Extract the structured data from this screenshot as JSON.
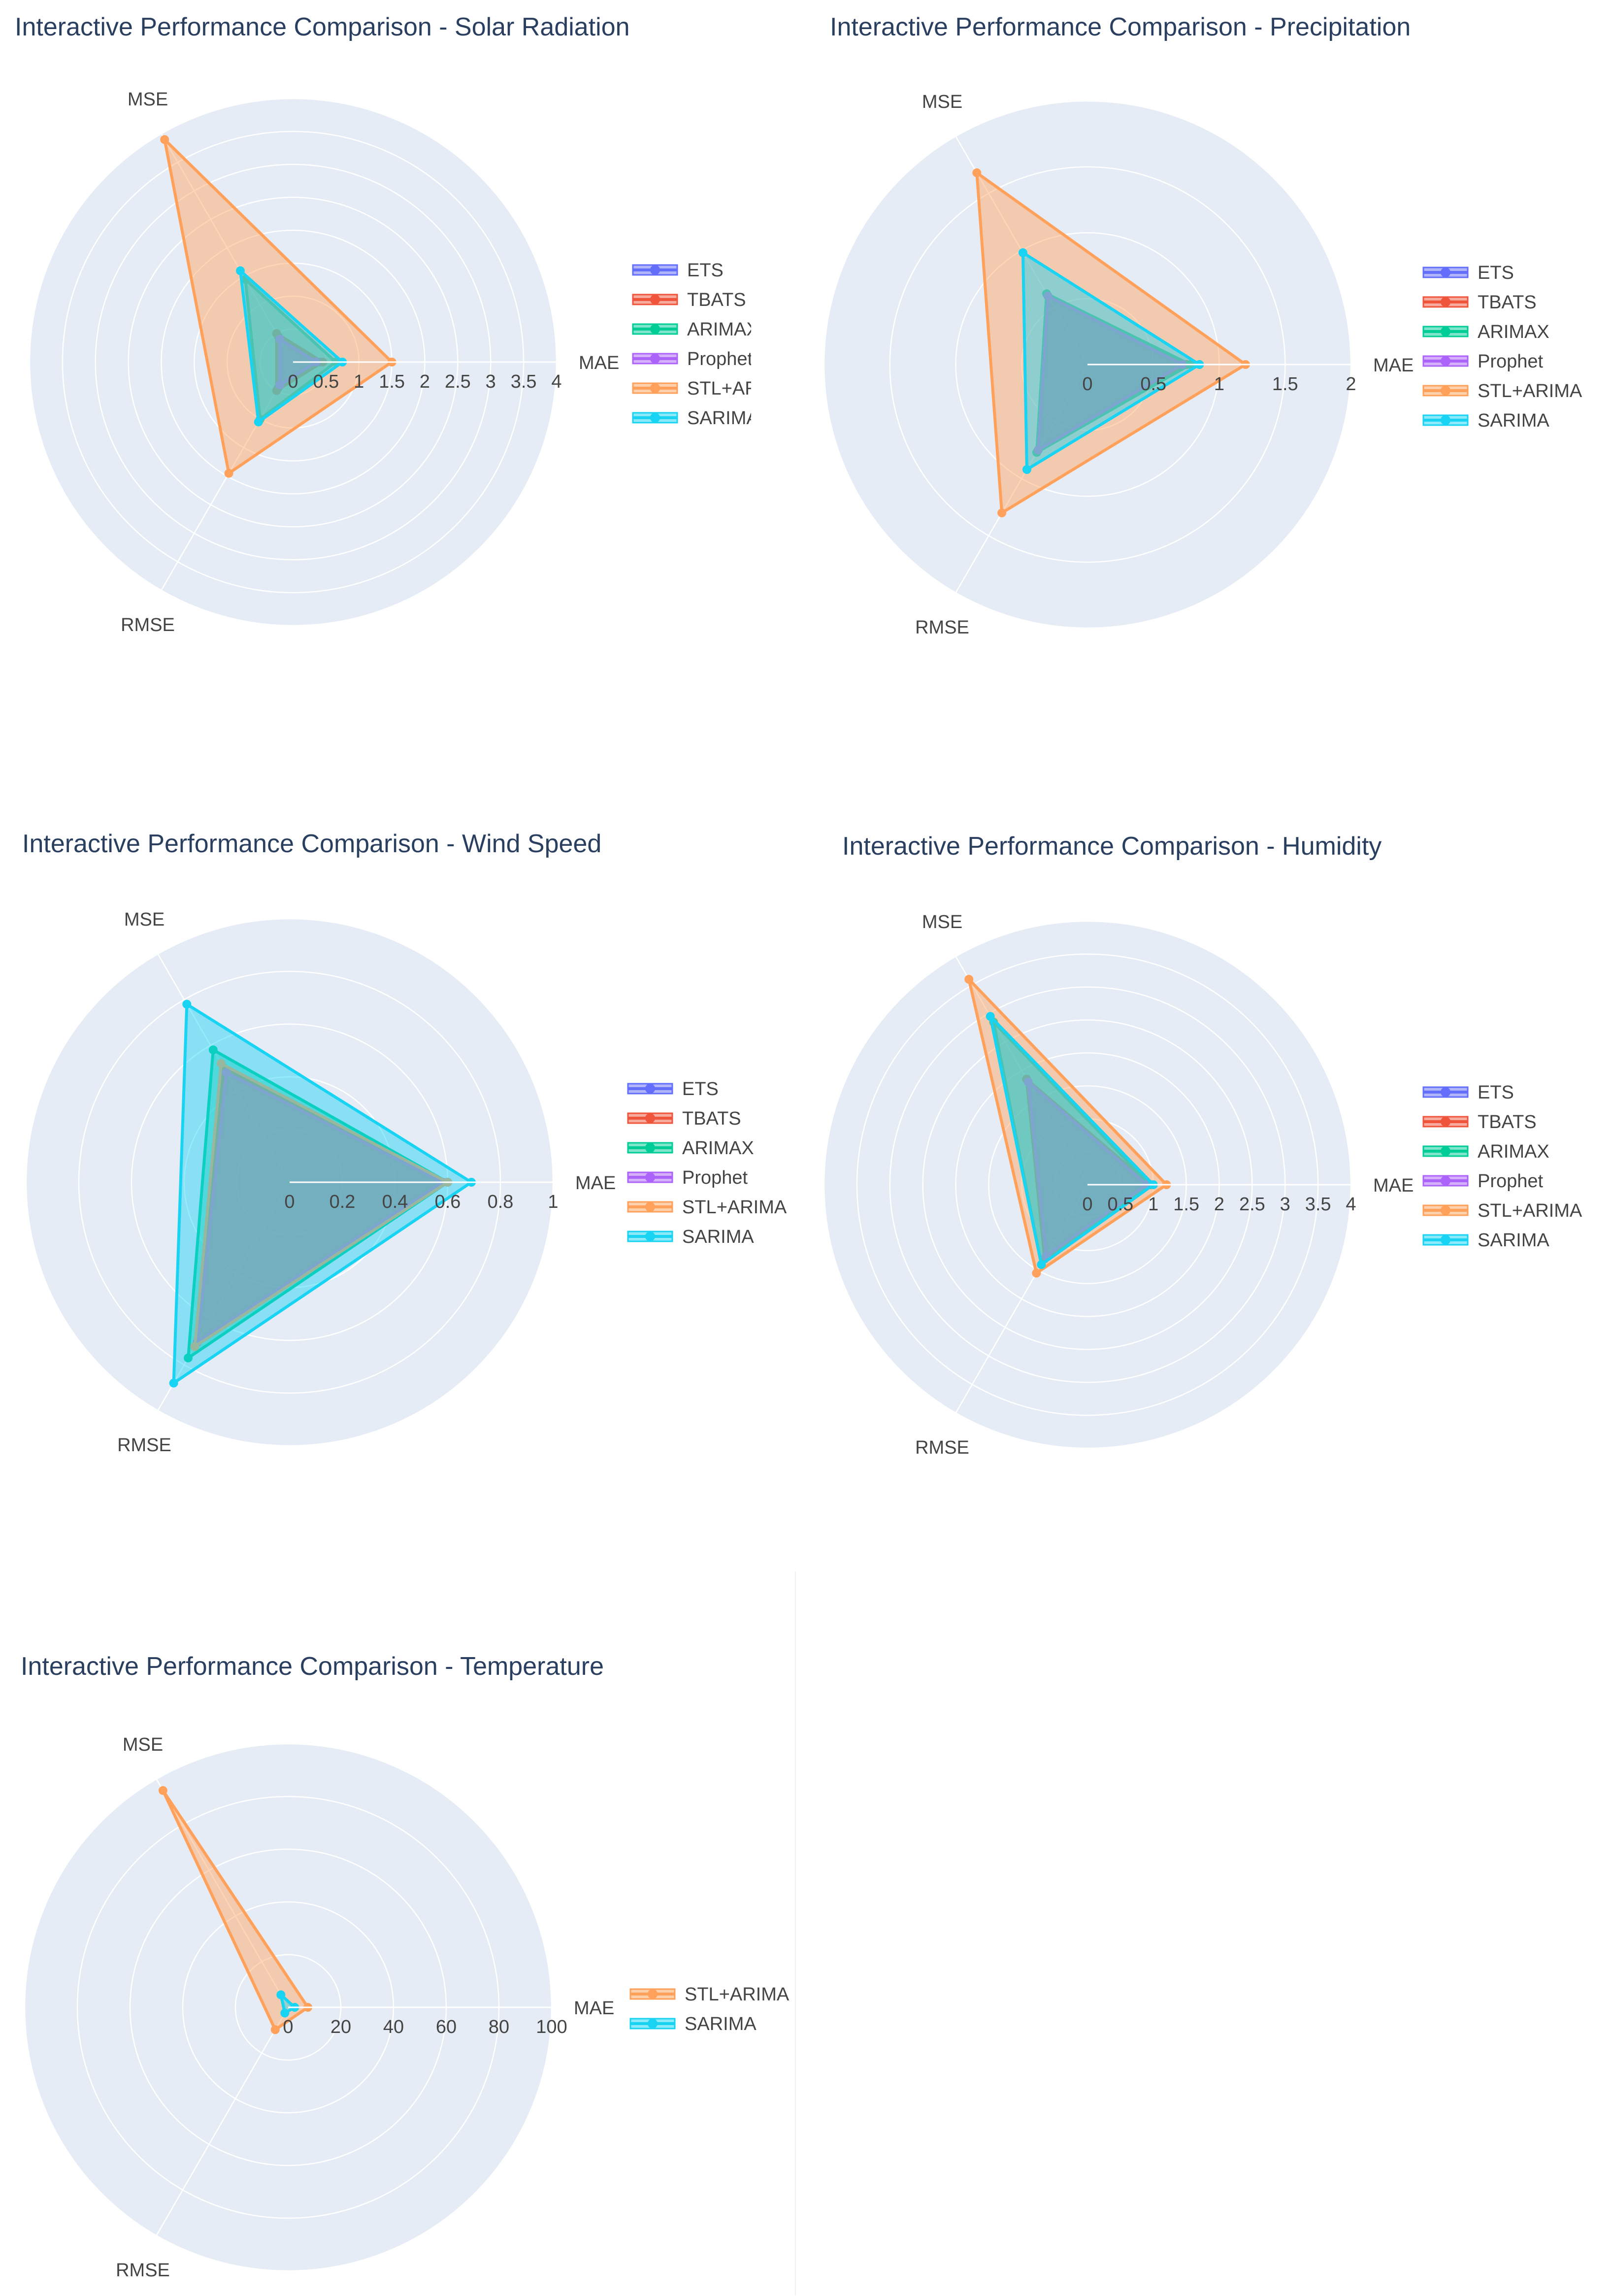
{
  "colors": {
    "plot_bg": "#e5ecf6",
    "grid": "#ffffff",
    "title_text": "#2a3f5f",
    "axis_text": "#444444",
    "series": {
      "ETS": "#636efa",
      "TBATS": "#ef553b",
      "ARIMAX": "#00cc96",
      "Prophet": "#ab63fa",
      "STL+ARIMA": "#ffa15a",
      "SARIMA": "#19d3f3"
    }
  },
  "chart_data": [
    {
      "type": "radar",
      "title": "Interactive Performance Comparison - Solar Radiation",
      "axes": [
        "MAE",
        "MSE",
        "RMSE"
      ],
      "radial_range": [
        0,
        4
      ],
      "radial_ticks": [
        "0",
        "0.5",
        "1",
        "1.5",
        "2",
        "2.5",
        "3",
        "3.5",
        "4"
      ],
      "series": [
        {
          "name": "ETS",
          "values": [
            0.4,
            0.45,
            0.45
          ]
        },
        {
          "name": "TBATS",
          "values": [
            0.45,
            0.5,
            0.5
          ]
        },
        {
          "name": "ARIMAX",
          "values": [
            0.65,
            1.45,
            1.0
          ]
        },
        {
          "name": "Prophet",
          "values": [
            0.35,
            0.4,
            0.4
          ]
        },
        {
          "name": "STL+ARIMA",
          "values": [
            1.5,
            3.9,
            1.95
          ]
        },
        {
          "name": "SARIMA",
          "values": [
            0.75,
            1.6,
            1.05
          ]
        }
      ]
    },
    {
      "type": "radar",
      "title": "Interactive Performance Comparison - Precipitation",
      "axes": [
        "MAE",
        "MSE",
        "RMSE"
      ],
      "radial_range": [
        0,
        2
      ],
      "radial_ticks": [
        "0",
        "0.5",
        "1",
        "1.5",
        "2"
      ],
      "series": [
        {
          "name": "ETS",
          "values": [
            0.75,
            0.6,
            0.75
          ]
        },
        {
          "name": "TBATS",
          "values": [
            0.75,
            0.6,
            0.75
          ]
        },
        {
          "name": "ARIMAX",
          "values": [
            0.78,
            0.62,
            0.77
          ]
        },
        {
          "name": "Prophet",
          "values": [
            0.72,
            0.6,
            0.75
          ]
        },
        {
          "name": "STL+ARIMA",
          "values": [
            1.2,
            1.68,
            1.3
          ]
        },
        {
          "name": "SARIMA",
          "values": [
            0.85,
            0.98,
            0.92
          ]
        }
      ]
    },
    {
      "type": "radar",
      "title": "Interactive Performance Comparison - Wind Speed",
      "axes": [
        "MAE",
        "MSE",
        "RMSE"
      ],
      "radial_range": [
        0,
        1
      ],
      "radial_ticks": [
        "0",
        "0.2",
        "0.4",
        "0.6",
        "0.8",
        "1"
      ],
      "series": [
        {
          "name": "ETS",
          "values": [
            0.6,
            0.5,
            0.7
          ]
        },
        {
          "name": "TBATS",
          "values": [
            0.6,
            0.5,
            0.7
          ]
        },
        {
          "name": "ARIMAX",
          "values": [
            0.6,
            0.58,
            0.77
          ]
        },
        {
          "name": "Prophet",
          "values": [
            0.58,
            0.48,
            0.7
          ]
        },
        {
          "name": "STL+ARIMA",
          "values": [
            0.6,
            0.52,
            0.72
          ]
        },
        {
          "name": "SARIMA",
          "values": [
            0.69,
            0.78,
            0.88
          ]
        }
      ]
    },
    {
      "type": "radar",
      "title": "Interactive Performance Comparison - Humidity",
      "axes": [
        "MAE",
        "MSE",
        "RMSE"
      ],
      "radial_range": [
        0,
        4
      ],
      "radial_ticks": [
        "0",
        "0.5",
        "1",
        "1.5",
        "2",
        "2.5",
        "3",
        "3.5",
        "4"
      ],
      "series": [
        {
          "name": "ETS",
          "values": [
            0.95,
            1.85,
            1.3
          ]
        },
        {
          "name": "TBATS",
          "values": [
            0.95,
            1.85,
            1.3
          ]
        },
        {
          "name": "ARIMAX",
          "values": [
            0.95,
            2.85,
            1.4
          ]
        },
        {
          "name": "Prophet",
          "values": [
            0.9,
            1.8,
            1.25
          ]
        },
        {
          "name": "STL+ARIMA",
          "values": [
            1.2,
            3.6,
            1.55
          ]
        },
        {
          "name": "SARIMA",
          "values": [
            1.0,
            2.95,
            1.4
          ]
        }
      ]
    },
    {
      "type": "radar",
      "title": "Interactive Performance Comparison - Temperature",
      "axes": [
        "MAE",
        "MSE",
        "RMSE"
      ],
      "radial_range": [
        0,
        100
      ],
      "radial_ticks": [
        "0",
        "20",
        "40",
        "60",
        "80",
        "100"
      ],
      "series": [
        {
          "name": "STL+ARIMA",
          "values": [
            7.5,
            95,
            9.8
          ]
        },
        {
          "name": "SARIMA",
          "values": [
            2.5,
            5.5,
            2.5
          ]
        }
      ]
    }
  ]
}
